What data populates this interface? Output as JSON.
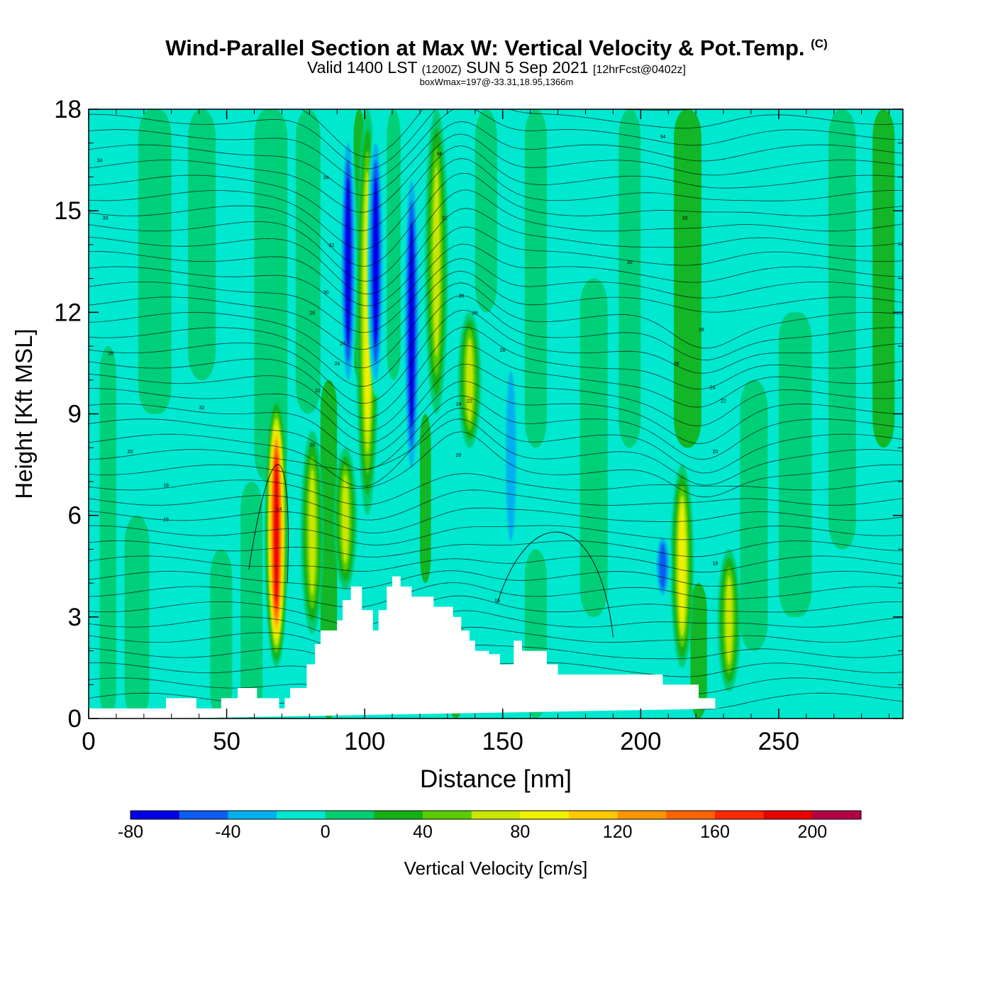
{
  "header": {
    "title": "Wind-Parallel Section at Max W: Vertical Velocity & Pot.Temp.",
    "copyright": "(C)",
    "valid_prefix": "Valid 1400 LST",
    "valid_utc": "(1200Z)",
    "valid_date": "SUN 5 Sep 2021",
    "forecast": "[12hrFcst@0402z]",
    "boxwmax": "boxWmax=197@-33.31,18.95,1366m"
  },
  "chart_data": {
    "type": "heatmap",
    "xlabel": "Distance [nm]",
    "ylabel": "Height [Kft MSL]",
    "xlim": [
      0,
      295
    ],
    "ylim": [
      0,
      18
    ],
    "xticks": [
      0,
      50,
      100,
      150,
      200,
      250
    ],
    "yticks": [
      0,
      3,
      6,
      9,
      12,
      15,
      18
    ],
    "colorbar": {
      "label": "Vertical Velocity [cm/s]",
      "levels": [
        -80,
        -60,
        -40,
        -20,
        0,
        20,
        40,
        60,
        80,
        100,
        120,
        140,
        160,
        180,
        200,
        220
      ],
      "tick_labels": [
        "-80",
        "-40",
        "0",
        "40",
        "80",
        "120",
        "160",
        "200"
      ],
      "colors": [
        "#0000e6",
        "#0c5cf0",
        "#00b0f0",
        "#00e8d0",
        "#00cc70",
        "#14b014",
        "#5acc00",
        "#c8e600",
        "#f0f000",
        "#ffc800",
        "#ff9600",
        "#ff6400",
        "#ff2800",
        "#e60000",
        "#b40046"
      ]
    },
    "background_color": "#00e8d0",
    "updraft_cores": [
      {
        "x": 68,
        "z_bottom": 1.5,
        "z_top": 9.5,
        "peak": 197
      },
      {
        "x": 81,
        "z_bottom": 2.5,
        "z_top": 8.5,
        "peak": 70
      },
      {
        "x": 93,
        "z_bottom": 3.8,
        "z_top": 8.0,
        "peak": 75
      },
      {
        "x": 101,
        "z_bottom": 6.0,
        "z_top": 18.0,
        "peak": 100
      },
      {
        "x": 126,
        "z_bottom": 9.0,
        "z_top": 18.0,
        "peak": 70
      },
      {
        "x": 138,
        "z_bottom": 8.0,
        "z_top": 12.0,
        "peak": 70
      },
      {
        "x": 215,
        "z_bottom": 1.5,
        "z_top": 7.5,
        "peak": 95
      },
      {
        "x": 232,
        "z_bottom": 0.8,
        "z_top": 5.0,
        "peak": 80
      }
    ],
    "downdraft_cores": [
      {
        "x": 94,
        "z_bottom": 9.5,
        "z_top": 17.5,
        "peak": -80
      },
      {
        "x": 104,
        "z_bottom": 9.5,
        "z_top": 17.5,
        "peak": -80
      },
      {
        "x": 117,
        "z_bottom": 6.8,
        "z_top": 16.5,
        "peak": -80
      },
      {
        "x": 153,
        "z_bottom": 4.5,
        "z_top": 11.0,
        "peak": -40
      },
      {
        "x": 208,
        "z_bottom": 3.5,
        "z_top": 5.5,
        "peak": -60
      }
    ],
    "terrain": {
      "x": [
        0,
        28,
        28,
        39,
        39,
        48,
        48,
        54,
        54,
        61,
        61,
        69,
        69,
        71,
        71,
        73,
        73,
        79,
        79,
        82,
        82,
        84,
        84,
        90,
        90,
        92,
        92,
        95,
        95,
        99,
        99,
        103,
        103,
        105,
        105,
        108,
        108,
        110,
        110,
        113,
        113,
        117,
        117,
        125,
        125,
        132,
        132,
        135,
        135,
        138,
        138,
        140,
        140,
        145,
        145,
        149,
        149,
        154,
        154,
        157,
        157,
        166,
        166,
        170,
        170,
        182,
        182,
        208,
        208,
        221,
        221,
        227,
        227,
        234,
        234,
        295
      ],
      "z": [
        0.3,
        0.3,
        0.6,
        0.6,
        0.3,
        0.3,
        0.6,
        0.6,
        0.9,
        0.9,
        0.6,
        0.6,
        0.3,
        0.3,
        0.6,
        0.6,
        0.9,
        0.9,
        1.6,
        1.6,
        2.2,
        2.2,
        2.6,
        2.6,
        2.9,
        2.9,
        3.5,
        3.5,
        3.9,
        3.9,
        3.2,
        3.2,
        2.6,
        2.6,
        3.2,
        3.2,
        3.9,
        3.9,
        4.2,
        4.2,
        3.9,
        3.9,
        3.6,
        3.6,
        3.3,
        3.3,
        3.0,
        3.0,
        2.6,
        2.6,
        2.3,
        2.3,
        2.0,
        2.0,
        1.9,
        1.9,
        1.6,
        1.6,
        2.3,
        2.3,
        2.0,
        2.0,
        1.6,
        1.6,
        1.3,
        1.3,
        1.3,
        1.3,
        1.0,
        1.0,
        0.6,
        0.6,
        0.3,
        0.3
      ]
    },
    "theta_contour_labels": [
      {
        "x": 4,
        "z": 16.5,
        "text": "34"
      },
      {
        "x": 6,
        "z": 14.8,
        "text": "33"
      },
      {
        "x": 8,
        "z": 10.8,
        "text": "28"
      },
      {
        "x": 41,
        "z": 9.2,
        "text": "32"
      },
      {
        "x": 15,
        "z": 7.9,
        "text": "20"
      },
      {
        "x": 28,
        "z": 6.9,
        "text": "18"
      },
      {
        "x": 28,
        "z": 5.9,
        "text": "16"
      },
      {
        "x": 69,
        "z": 6.2,
        "text": "14"
      },
      {
        "x": 86,
        "z": 16.0,
        "text": "34"
      },
      {
        "x": 88,
        "z": 14.0,
        "text": "32"
      },
      {
        "x": 86,
        "z": 12.6,
        "text": "30"
      },
      {
        "x": 81,
        "z": 12.0,
        "text": "28"
      },
      {
        "x": 92,
        "z": 11.1,
        "text": "24"
      },
      {
        "x": 90,
        "z": 10.5,
        "text": "24"
      },
      {
        "x": 83,
        "z": 9.7,
        "text": "22"
      },
      {
        "x": 81,
        "z": 8.1,
        "text": "20"
      },
      {
        "x": 127,
        "z": 16.7,
        "text": "34"
      },
      {
        "x": 129,
        "z": 14.8,
        "text": "32"
      },
      {
        "x": 135,
        "z": 12.5,
        "text": "30"
      },
      {
        "x": 140,
        "z": 12.0,
        "text": "26"
      },
      {
        "x": 150,
        "z": 10.9,
        "text": "28"
      },
      {
        "x": 134,
        "z": 9.3,
        "text": "24"
      },
      {
        "x": 138,
        "z": 9.4,
        "text": "22"
      },
      {
        "x": 134,
        "z": 7.8,
        "text": "20"
      },
      {
        "x": 148,
        "z": 3.5,
        "text": "16"
      },
      {
        "x": 208,
        "z": 17.2,
        "text": "34"
      },
      {
        "x": 216,
        "z": 14.8,
        "text": "33"
      },
      {
        "x": 196,
        "z": 13.5,
        "text": "30"
      },
      {
        "x": 222,
        "z": 11.5,
        "text": "28"
      },
      {
        "x": 213,
        "z": 10.5,
        "text": "26"
      },
      {
        "x": 226,
        "z": 9.8,
        "text": "24"
      },
      {
        "x": 230,
        "z": 9.4,
        "text": "22"
      },
      {
        "x": 227,
        "z": 7.9,
        "text": "20"
      },
      {
        "x": 227,
        "z": 4.6,
        "text": "18"
      }
    ]
  }
}
